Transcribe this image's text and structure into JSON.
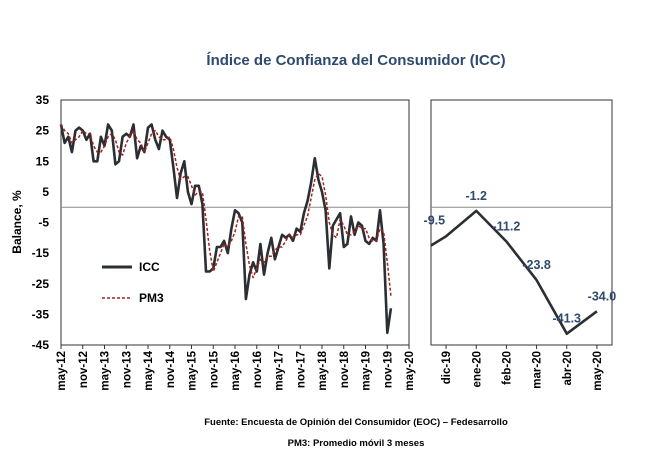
{
  "chart_data": [
    {
      "type": "line",
      "title": "Índice de Confianza del Consumidor (ICC)",
      "ylabel": "Balance, %",
      "ylim": [
        -45,
        35
      ],
      "yticks": [
        35,
        25,
        15,
        5,
        -5,
        -15,
        -25,
        -35,
        -45
      ],
      "xlim": [
        0,
        96
      ],
      "xtick_labels": [
        "may-12",
        "nov-12",
        "may-13",
        "nov-13",
        "may-14",
        "nov-14",
        "may-15",
        "nov-15",
        "may-16",
        "nov-16",
        "may-17",
        "nov-17",
        "may-18",
        "nov-18",
        "may-19",
        "nov-19",
        "may-20"
      ],
      "legend_position": "left-middle",
      "series": [
        {
          "name": "ICC",
          "color": "#2b2f33",
          "style": "solid",
          "points": [
            [
              0,
              27
            ],
            [
              1,
              21
            ],
            [
              2,
              23
            ],
            [
              3,
              18
            ],
            [
              4,
              25
            ],
            [
              5,
              26
            ],
            [
              6,
              25
            ],
            [
              7,
              22
            ],
            [
              8,
              24
            ],
            [
              9,
              15
            ],
            [
              10,
              15
            ],
            [
              11,
              23
            ],
            [
              12,
              20
            ],
            [
              13,
              27
            ],
            [
              14,
              25
            ],
            [
              15,
              14
            ],
            [
              16,
              15
            ],
            [
              17,
              23
            ],
            [
              18,
              24
            ],
            [
              19,
              23
            ],
            [
              20,
              27
            ],
            [
              21,
              16
            ],
            [
              22,
              20
            ],
            [
              23,
              18
            ],
            [
              24,
              26
            ],
            [
              25,
              27
            ],
            [
              26,
              22
            ],
            [
              27,
              19
            ],
            [
              28,
              25
            ],
            [
              29,
              23
            ],
            [
              30,
              22
            ],
            [
              31,
              13
            ],
            [
              32,
              3
            ],
            [
              33,
              11
            ],
            [
              34,
              15
            ],
            [
              35,
              5
            ],
            [
              36,
              1
            ],
            [
              37,
              7
            ],
            [
              38,
              7
            ],
            [
              39,
              1
            ],
            [
              40,
              -21
            ],
            [
              41,
              -21
            ],
            [
              42,
              -20
            ],
            [
              43,
              -13
            ],
            [
              44,
              -13
            ],
            [
              45,
              -11
            ],
            [
              46,
              -15
            ],
            [
              47,
              -7
            ],
            [
              48,
              -1
            ],
            [
              49,
              -2
            ],
            [
              50,
              -5
            ],
            [
              51,
              -30
            ],
            [
              52,
              -22
            ],
            [
              53,
              -18
            ],
            [
              54,
              -21
            ],
            [
              55,
              -12
            ],
            [
              56,
              -22
            ],
            [
              57,
              -15
            ],
            [
              58,
              -10
            ],
            [
              59,
              -17
            ],
            [
              60,
              -13
            ],
            [
              61,
              -9
            ],
            [
              62,
              -10
            ],
            [
              63,
              -9
            ],
            [
              64,
              -11
            ],
            [
              65,
              -7
            ],
            [
              66,
              -8
            ],
            [
              67,
              -2
            ],
            [
              68,
              2
            ],
            [
              69,
              8
            ],
            [
              70,
              16
            ],
            [
              71,
              9
            ],
            [
              72,
              5
            ],
            [
              73,
              -1
            ],
            [
              74,
              -20
            ],
            [
              75,
              -6
            ],
            [
              76,
              -4
            ],
            [
              77,
              -2
            ],
            [
              78,
              -13
            ],
            [
              79,
              -12
            ],
            [
              80,
              -3
            ],
            [
              81,
              -9
            ],
            [
              82,
              -5
            ],
            [
              83,
              -6
            ],
            [
              84,
              -11
            ],
            [
              85,
              -12
            ],
            [
              86,
              -10
            ],
            [
              87,
              -11
            ],
            [
              88,
              -1
            ],
            [
              89,
              -12
            ],
            [
              90,
              -41
            ],
            [
              91,
              -33
            ]
          ]
        },
        {
          "name": "PM3",
          "color": "#a0221d",
          "style": "dashed",
          "points": [
            [
              0,
              27
            ],
            [
              1,
              25
            ],
            [
              2,
              24
            ],
            [
              3,
              21
            ],
            [
              4,
              22
            ],
            [
              5,
              23
            ],
            [
              6,
              25
            ],
            [
              7,
              24
            ],
            [
              8,
              24
            ],
            [
              9,
              20
            ],
            [
              10,
              18
            ],
            [
              11,
              18
            ],
            [
              12,
              20
            ],
            [
              13,
              23
            ],
            [
              14,
              24
            ],
            [
              15,
              22
            ],
            [
              16,
              18
            ],
            [
              17,
              17
            ],
            [
              18,
              21
            ],
            [
              19,
              23
            ],
            [
              20,
              25
            ],
            [
              21,
              22
            ],
            [
              22,
              21
            ],
            [
              23,
              18
            ],
            [
              24,
              21
            ],
            [
              25,
              24
            ],
            [
              26,
              25
            ],
            [
              27,
              23
            ],
            [
              28,
              22
            ],
            [
              29,
              22
            ],
            [
              30,
              23
            ],
            [
              31,
              19
            ],
            [
              32,
              13
            ],
            [
              33,
              9
            ],
            [
              34,
              10
            ],
            [
              35,
              10
            ],
            [
              36,
              7
            ],
            [
              37,
              4
            ],
            [
              38,
              5
            ],
            [
              39,
              5
            ],
            [
              40,
              -4
            ],
            [
              41,
              -14
            ],
            [
              42,
              -21
            ],
            [
              43,
              -18
            ],
            [
              44,
              -15
            ],
            [
              45,
              -12
            ],
            [
              46,
              -13
            ],
            [
              47,
              -11
            ],
            [
              48,
              -8
            ],
            [
              49,
              -3
            ],
            [
              50,
              -3
            ],
            [
              51,
              -12
            ],
            [
              52,
              -19
            ],
            [
              53,
              -23
            ],
            [
              54,
              -20
            ],
            [
              55,
              -17
            ],
            [
              56,
              -18
            ],
            [
              57,
              -16
            ],
            [
              58,
              -16
            ],
            [
              59,
              -14
            ],
            [
              60,
              -13
            ],
            [
              61,
              -13
            ],
            [
              62,
              -11
            ],
            [
              63,
              -9
            ],
            [
              64,
              -10
            ],
            [
              65,
              -9
            ],
            [
              66,
              -9
            ],
            [
              67,
              -6
            ],
            [
              68,
              -3
            ],
            [
              69,
              3
            ],
            [
              70,
              9
            ],
            [
              71,
              11
            ],
            [
              72,
              10
            ],
            [
              73,
              4
            ],
            [
              74,
              -5
            ],
            [
              75,
              -9
            ],
            [
              76,
              -10
            ],
            [
              77,
              -4
            ],
            [
              78,
              -6
            ],
            [
              79,
              -9
            ],
            [
              80,
              -9
            ],
            [
              81,
              -8
            ],
            [
              82,
              -6
            ],
            [
              83,
              -7
            ],
            [
              84,
              -7
            ],
            [
              85,
              -10
            ],
            [
              86,
              -11
            ],
            [
              87,
              -11
            ],
            [
              88,
              -7
            ],
            [
              89,
              -8
            ],
            [
              90,
              -18
            ],
            [
              91,
              -29
            ]
          ]
        }
      ]
    },
    {
      "type": "line",
      "ylim": [
        -45,
        35
      ],
      "categories": [
        "dic-19",
        "ene-20",
        "feb-20",
        "mar-20",
        "abr-20",
        "may-20"
      ],
      "series": [
        {
          "name": "ICC",
          "color": "#2b2f33",
          "values": [
            -9.5,
            -1.2,
            -11.2,
            -23.8,
            -41.3,
            -34.0
          ],
          "data_labels": [
            "-9.5",
            "-1.2",
            "-11.2",
            "-23.8",
            "-41.3",
            "-34.0"
          ]
        }
      ],
      "start_value": -12.5
    }
  ],
  "notes": {
    "source": "Fuente: Encuesta de Opinión del Consumidor (EOC) – Fedesarrollo",
    "pm3": "PM3: Promedio móvil 3 meses"
  }
}
